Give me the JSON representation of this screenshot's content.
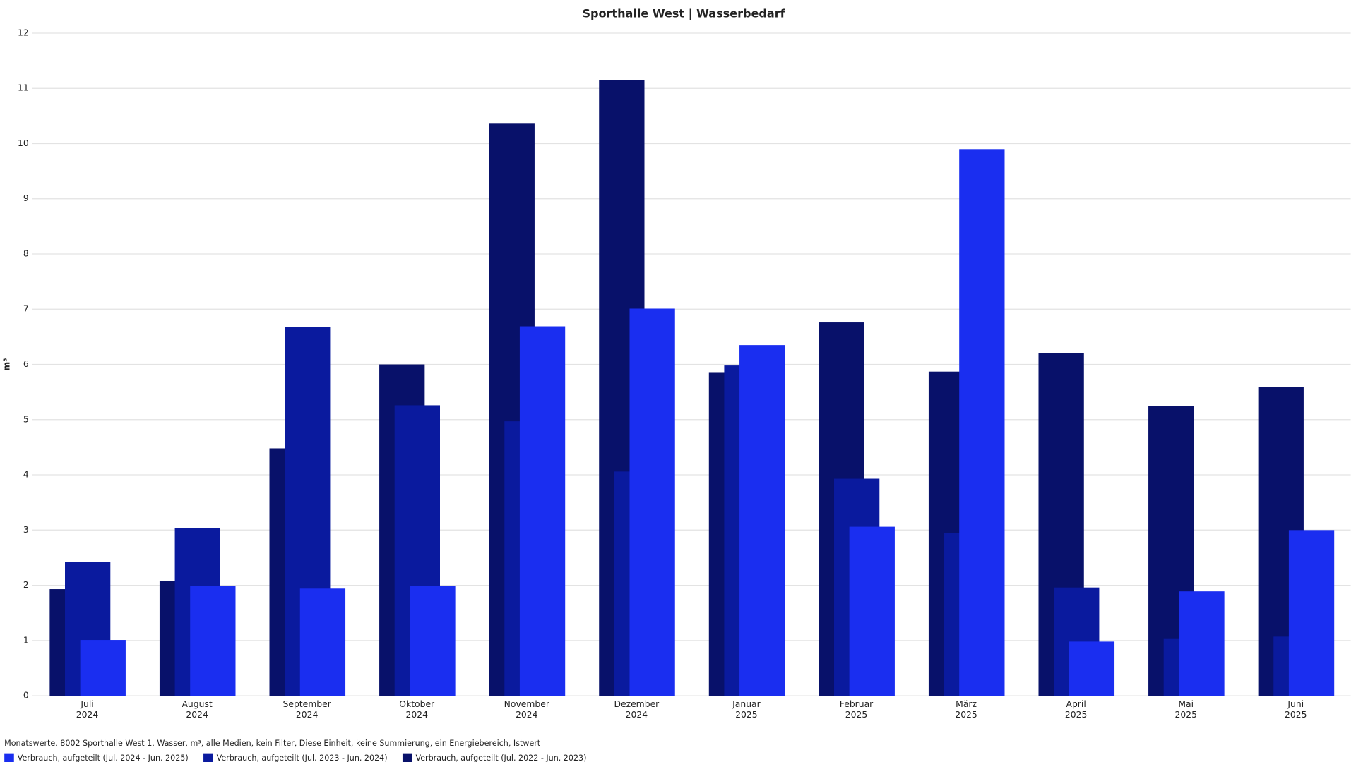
{
  "chart_data": {
    "type": "bar",
    "title": "Sporthalle West | Wasserbedarf",
    "y_label": "m³",
    "categories": [
      "Juli\n2024",
      "August\n2024",
      "September\n2024",
      "Oktober\n2024",
      "November\n2024",
      "Dezember\n2024",
      "Januar\n2025",
      "Februar\n2025",
      "März\n2025",
      "April\n2025",
      "Mai\n2025",
      "Juni\n2025"
    ],
    "series": [
      {
        "name": "Verbrauch, aufgeteilt (Jul. 2024 - Jun. 2025)",
        "color": "#1a2ef0",
        "values": [
          1.01,
          1.99,
          1.94,
          1.99,
          6.69,
          7.01,
          6.35,
          3.06,
          9.9,
          0.98,
          1.89,
          3.0
        ]
      },
      {
        "name": "Verbrauch, aufgeteilt (Jul. 2023 - Jun. 2024)",
        "color": "#0a1a9e",
        "values": [
          2.42,
          3.03,
          6.68,
          5.26,
          4.97,
          4.06,
          5.98,
          3.93,
          2.94,
          1.96,
          1.04,
          1.07
        ]
      },
      {
        "name": "Verbrauch, aufgeteilt (Jul. 2022 - Jun. 2023)",
        "color": "#08116a",
        "values": [
          1.93,
          2.08,
          4.48,
          6.0,
          10.36,
          11.15,
          5.86,
          6.76,
          5.87,
          6.21,
          5.24,
          5.59
        ]
      }
    ],
    "ylim": [
      0,
      12
    ],
    "yticks": [
      0,
      1,
      2,
      3,
      4,
      5,
      6,
      7,
      8,
      9,
      10,
      11,
      12
    ],
    "grid": true,
    "footnote": "Monatswerte, 8002 Sporthalle West 1, Wasser, m³, alle Medien, kein Filter, Diese Einheit, keine Summierung, ein Energiebereich, Istwert",
    "legend": "bottom-left"
  }
}
